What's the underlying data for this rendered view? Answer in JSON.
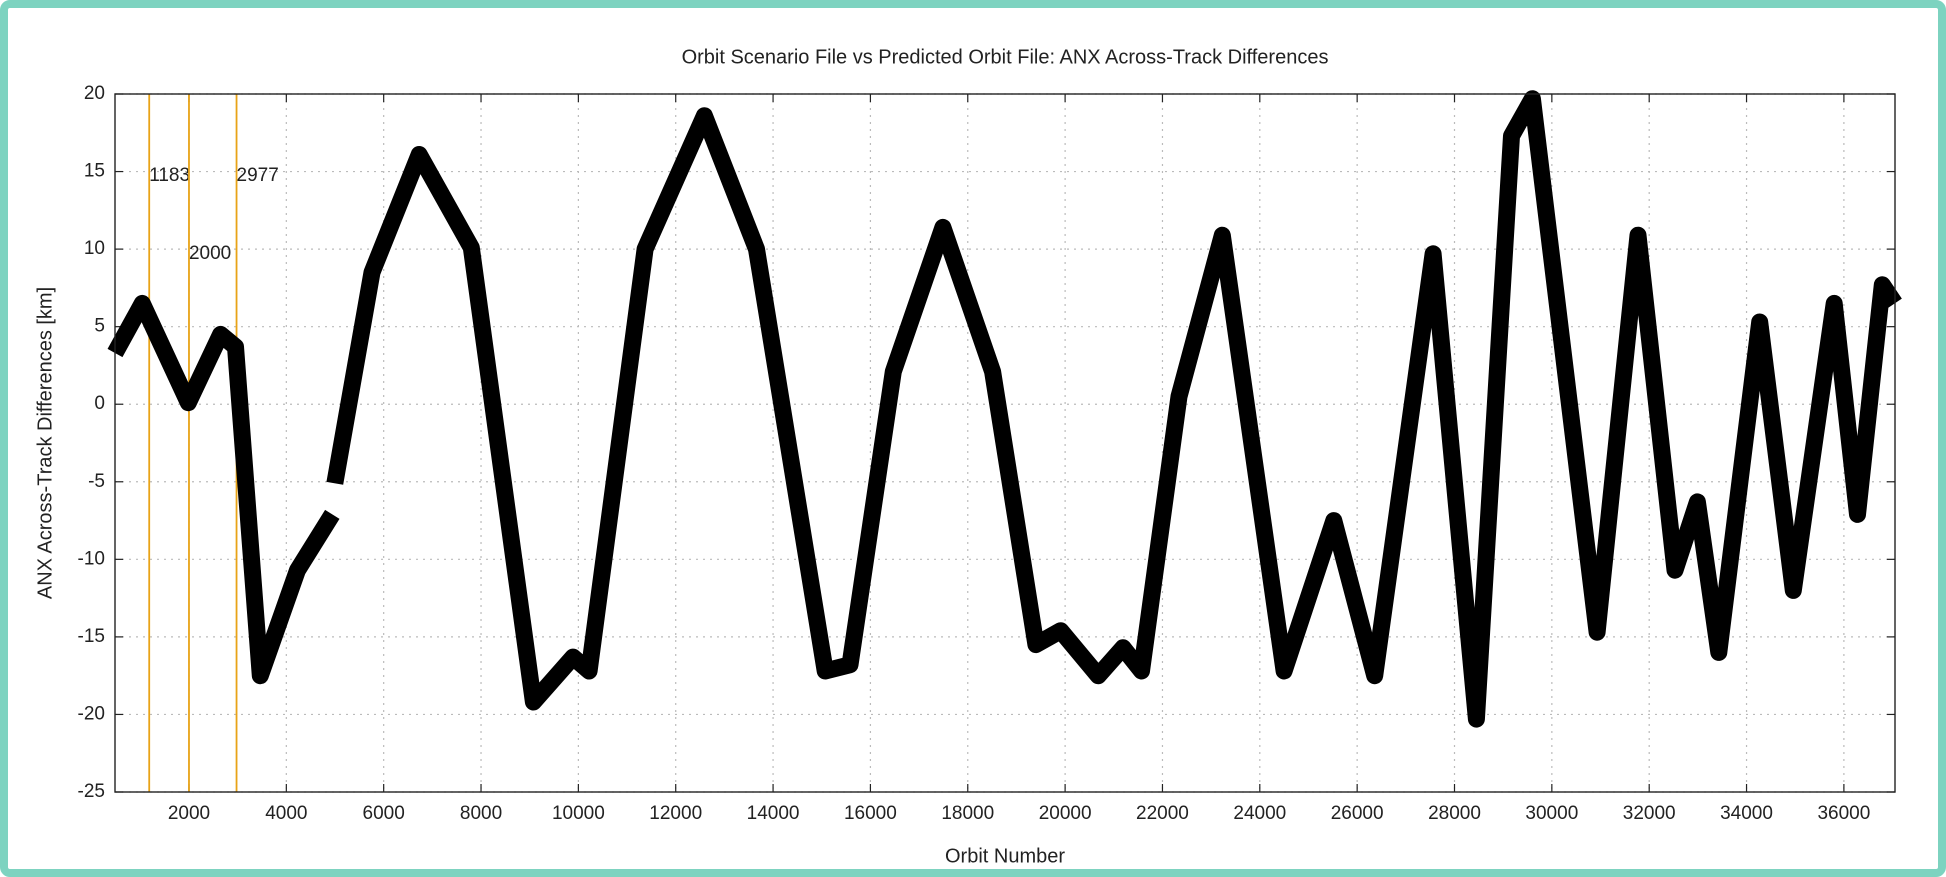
{
  "chart_data": {
    "type": "line",
    "title": "Orbit Scenario File vs Predicted Orbit File: ANX Across-Track Differences",
    "x_label": "Orbit Number",
    "y_label": "ANX Across-Track Differences [km]",
    "xlim": [
      480,
      37050
    ],
    "ylim": [
      -25,
      20
    ],
    "xticks": [
      2000,
      4000,
      6000,
      8000,
      10000,
      12000,
      14000,
      16000,
      18000,
      20000,
      22000,
      24000,
      26000,
      28000,
      30000,
      32000,
      34000,
      36000
    ],
    "yticks": [
      -25,
      -20,
      -15,
      -10,
      -5,
      0,
      5,
      10,
      15,
      20
    ],
    "grid": true,
    "annotations": [
      {
        "x": 1183,
        "label": "1183",
        "color": "#e8a317"
      },
      {
        "x": 2000,
        "label": "2000",
        "color": "#e8a317"
      },
      {
        "x": 2977,
        "label": "2977",
        "color": "#e8a317"
      }
    ],
    "series": [
      {
        "color": "#000000",
        "x": [
          481,
          1040,
          1985,
          2650,
          2955,
          3465,
          4230,
          4944,
          null,
          4995,
          5760,
          6730,
          7800,
          9075,
          9890,
          10220,
          11370,
          12590,
          13660,
          15070,
          15580,
          16470,
          17490,
          18510,
          19400,
          19910,
          20680,
          21190,
          21570,
          22340,
          23230,
          24500,
          25520,
          26360,
          27560,
          28450,
          29170,
          29600,
          30930,
          31770,
          32530,
          32990,
          33430,
          34270,
          34960,
          35800,
          36280,
          36790,
          37045
        ],
        "values": [
          3.3,
          6.5,
          0.1,
          4.5,
          3.7,
          -17.5,
          -10.7,
          -7.1,
          null,
          -5.1,
          8.5,
          16.1,
          10.1,
          -19.2,
          -16.3,
          -17.2,
          10,
          18.6,
          10,
          -17.2,
          -16.8,
          2.1,
          11.4,
          2.1,
          -15.5,
          -14.6,
          -17.5,
          -15.7,
          -17.2,
          0.5,
          10.9,
          -17.2,
          -7.5,
          -17.5,
          9.7,
          -20.3,
          17.3,
          19.7,
          -14.7,
          10.9,
          -10.7,
          -6.3,
          -16,
          5.3,
          -12,
          6.5,
          -7.1,
          7.7,
          6.5
        ]
      }
    ]
  }
}
